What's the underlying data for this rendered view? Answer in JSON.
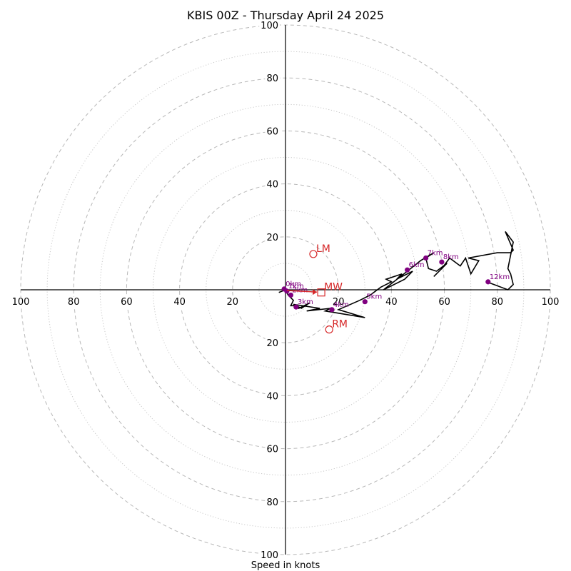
{
  "chart_data": {
    "type": "hodograph",
    "title": "KBIS 00Z - Thursday April 24 2025",
    "xlabel": "Speed in knots",
    "ring_max": 100,
    "major_rings": [
      20,
      40,
      60,
      80,
      100
    ],
    "minor_rings": [
      10,
      30,
      50,
      70,
      90
    ],
    "tick_labels": {
      "top": [
        "20",
        "40",
        "60",
        "80",
        "100"
      ],
      "bottom": [
        "20",
        "40",
        "60",
        "80",
        "100"
      ],
      "left": [
        "100",
        "80",
        "60",
        "40",
        "20"
      ],
      "right": [
        "20",
        "40",
        "60",
        "80",
        "100"
      ]
    },
    "colors": {
      "trace": "#000000",
      "height_markers": "#800080",
      "storm_motion": "#d62728",
      "grid": "#b8b8b8"
    },
    "wind_trace": [
      [
        -2.5,
        -1
      ],
      [
        0,
        0
      ],
      [
        1,
        -2
      ],
      [
        3,
        -4
      ],
      [
        2,
        -6
      ],
      [
        4,
        -6
      ],
      [
        5,
        -7
      ],
      [
        9,
        -5
      ],
      [
        6,
        -7
      ],
      [
        3,
        -5.5
      ],
      [
        13,
        -7
      ],
      [
        8,
        -8
      ],
      [
        17,
        -7
      ],
      [
        15,
        -8
      ],
      [
        30,
        -10.5
      ],
      [
        20,
        -7.5
      ],
      [
        28,
        -4
      ],
      [
        32,
        -2
      ],
      [
        36,
        1
      ],
      [
        40,
        3
      ],
      [
        38,
        4
      ],
      [
        44,
        6
      ],
      [
        42,
        4
      ],
      [
        48,
        7
      ],
      [
        45,
        4
      ],
      [
        37,
        0
      ],
      [
        46,
        7
      ],
      [
        51,
        11
      ],
      [
        56,
        14
      ],
      [
        53,
        12
      ],
      [
        54,
        8
      ],
      [
        57,
        7
      ],
      [
        61,
        10
      ],
      [
        56,
        5
      ],
      [
        59,
        8
      ],
      [
        62,
        12
      ],
      [
        66,
        9
      ],
      [
        68,
        12
      ],
      [
        70,
        6
      ],
      [
        73,
        11
      ],
      [
        69,
        12
      ],
      [
        80,
        14
      ],
      [
        85,
        14
      ],
      [
        86,
        15
      ],
      [
        83,
        22
      ],
      [
        86,
        18
      ],
      [
        84,
        8
      ],
      [
        85,
        6
      ],
      [
        86,
        2
      ],
      [
        84,
        0
      ],
      [
        76,
        3
      ]
    ],
    "height_markers": [
      {
        "label": "0km",
        "x": -0.5,
        "y": 0.3
      },
      {
        "label": "1km",
        "x": 0.5,
        "y": -0.5
      },
      {
        "label": "2km",
        "x": 2,
        "y": -2
      },
      {
        "label": "3km",
        "x": 4,
        "y": -6.5
      },
      {
        "label": "4km",
        "x": 17.5,
        "y": -7.5
      },
      {
        "label": "5km",
        "x": 30,
        "y": -4.5
      },
      {
        "label": "6km",
        "x": 46,
        "y": 7.5
      },
      {
        "label": "7km",
        "x": 53,
        "y": 12
      },
      {
        "label": "8km",
        "x": 59,
        "y": 10.5
      },
      {
        "label": "12km",
        "x": 76.5,
        "y": 3
      }
    ],
    "storm_motion": [
      {
        "label": "MW",
        "x": 13.5,
        "y": -1,
        "marker": "square"
      },
      {
        "label": "LM",
        "x": 10.5,
        "y": 13.5,
        "marker": "circle"
      },
      {
        "label": "RM",
        "x": 16.5,
        "y": -15,
        "marker": "circle"
      }
    ]
  }
}
